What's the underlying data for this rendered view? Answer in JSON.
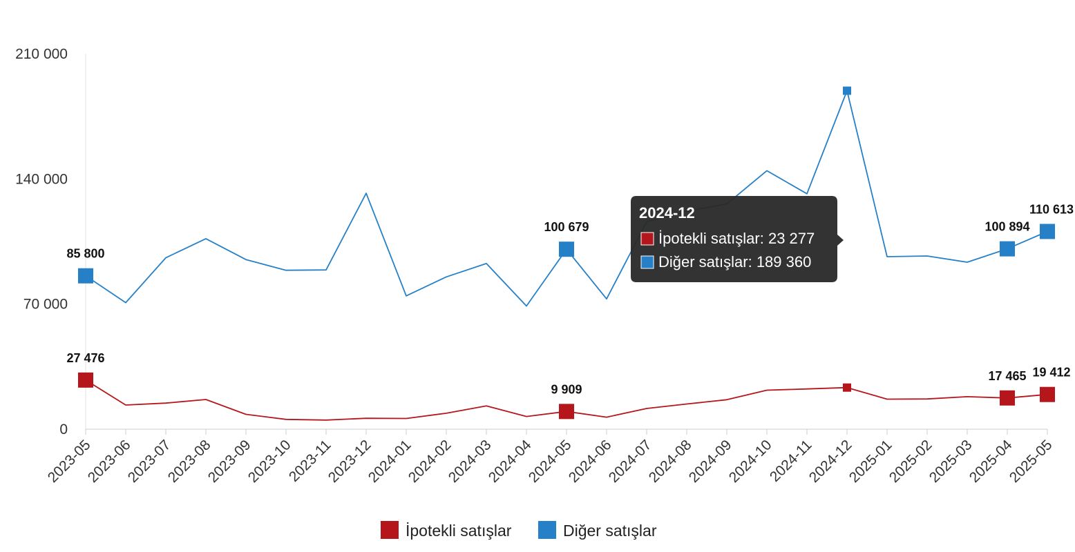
{
  "chart_data": {
    "type": "line",
    "title": "",
    "xlabel": "",
    "ylabel": "",
    "ylim": [
      0,
      210000
    ],
    "yticks": [
      0,
      70000,
      140000,
      210000
    ],
    "ytick_labels": [
      "0",
      "70 000",
      "140 000",
      "210 000"
    ],
    "categories": [
      "2023-05",
      "2023-06",
      "2023-07",
      "2023-08",
      "2023-09",
      "2023-10",
      "2023-11",
      "2023-12",
      "2024-01",
      "2024-02",
      "2024-03",
      "2024-04",
      "2024-05",
      "2024-06",
      "2024-07",
      "2024-08",
      "2024-09",
      "2024-10",
      "2024-11",
      "2024-12",
      "2025-01",
      "2025-02",
      "2025-03",
      "2025-04",
      "2025-05"
    ],
    "series": [
      {
        "name": "İpotekli satışlar",
        "color": "#b5161b",
        "values": [
          27476,
          13500,
          14600,
          16600,
          8300,
          5500,
          5100,
          6100,
          6000,
          8900,
          13000,
          7100,
          9909,
          6700,
          11600,
          14100,
          16500,
          21800,
          22500,
          23277,
          16800,
          16900,
          18200,
          17465,
          19412
        ],
        "labeled_points": [
          {
            "index": 0,
            "label": "27 476"
          },
          {
            "index": 12,
            "label": "9 909"
          },
          {
            "index": 23,
            "label": "17 465"
          },
          {
            "index": 24,
            "label": "19 412"
          }
        ]
      },
      {
        "name": "Diğer satışlar",
        "color": "#2680c7",
        "values": [
          85800,
          70800,
          95900,
          106600,
          94900,
          88900,
          89100,
          132000,
          74600,
          85200,
          92700,
          68900,
          100679,
          72900,
          116000,
          122000,
          126000,
          144600,
          131700,
          189360,
          96500,
          96900,
          93400,
          100894,
          110613
        ],
        "labeled_points": [
          {
            "index": 0,
            "label": "85 800"
          },
          {
            "index": 12,
            "label": "100 679"
          },
          {
            "index": 23,
            "label": "100 894"
          },
          {
            "index": 24,
            "label": "110 613"
          }
        ]
      }
    ],
    "legend_position": "bottom-center",
    "tooltip": {
      "index": 19,
      "title": "2024-12",
      "lines": [
        {
          "series": 0,
          "text": "İpotekli satışlar: 23 277"
        },
        {
          "series": 1,
          "text": "Diğer satışlar: 189 360"
        }
      ]
    }
  }
}
